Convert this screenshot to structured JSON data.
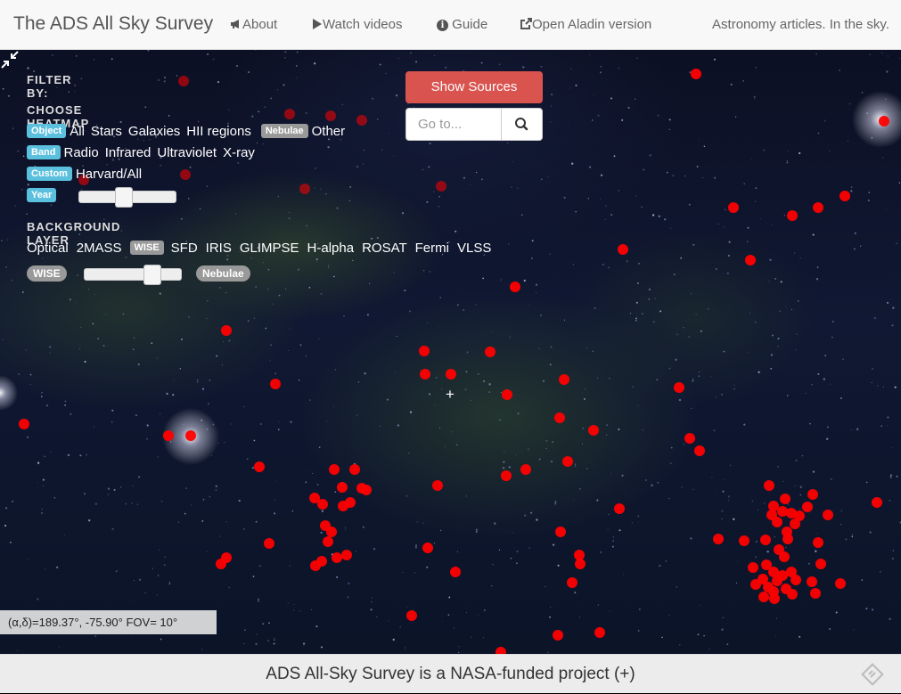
{
  "navbar": {
    "brand": "The ADS All Sky Survey",
    "about": "About",
    "videos": "Watch videos",
    "guide": "Guide",
    "aladin": "Open Aladin version",
    "tagline": "Astronomy articles. In the sky."
  },
  "filter": {
    "title": "FILTER BY:",
    "heatmap_heading": "CHOOSE HEATMAP",
    "object_label": "Object",
    "object_options": [
      "All",
      "Stars",
      "Galaxies",
      "HII regions"
    ],
    "nebulae_label": "Nebulae",
    "other": "Other",
    "band_label": "Band",
    "band_options": [
      "Radio",
      "Infrared",
      "Ultraviolet",
      "X-ray"
    ],
    "custom_label": "Custom",
    "custom_option": "Harvard/All",
    "year_label": "Year",
    "year_slider_value": 0.45,
    "background_heading": "BACKGROUND LAYER",
    "layers_before": [
      "Optical",
      "2MASS"
    ],
    "selected_layer": "WISE",
    "layers_after": [
      "SFD",
      "IRIS",
      "GLIMPSE",
      "H-alpha",
      "ROSAT",
      "Fermi",
      "VLSS"
    ],
    "blend_left": "WISE",
    "blend_right": "Nebulae",
    "blend_slider_value": 0.75
  },
  "controls": {
    "show_sources": "Show Sources",
    "goto_placeholder": "Go to..."
  },
  "coords": "(α,δ)=189.37°, -75.90° FOV= 10°",
  "footer": "ADS All-Sky Survey is a NASA-funded project (+)",
  "colors": {
    "marker": "#ff0000",
    "primary_button": "#d9534f",
    "tag": "#5bc0de"
  }
}
